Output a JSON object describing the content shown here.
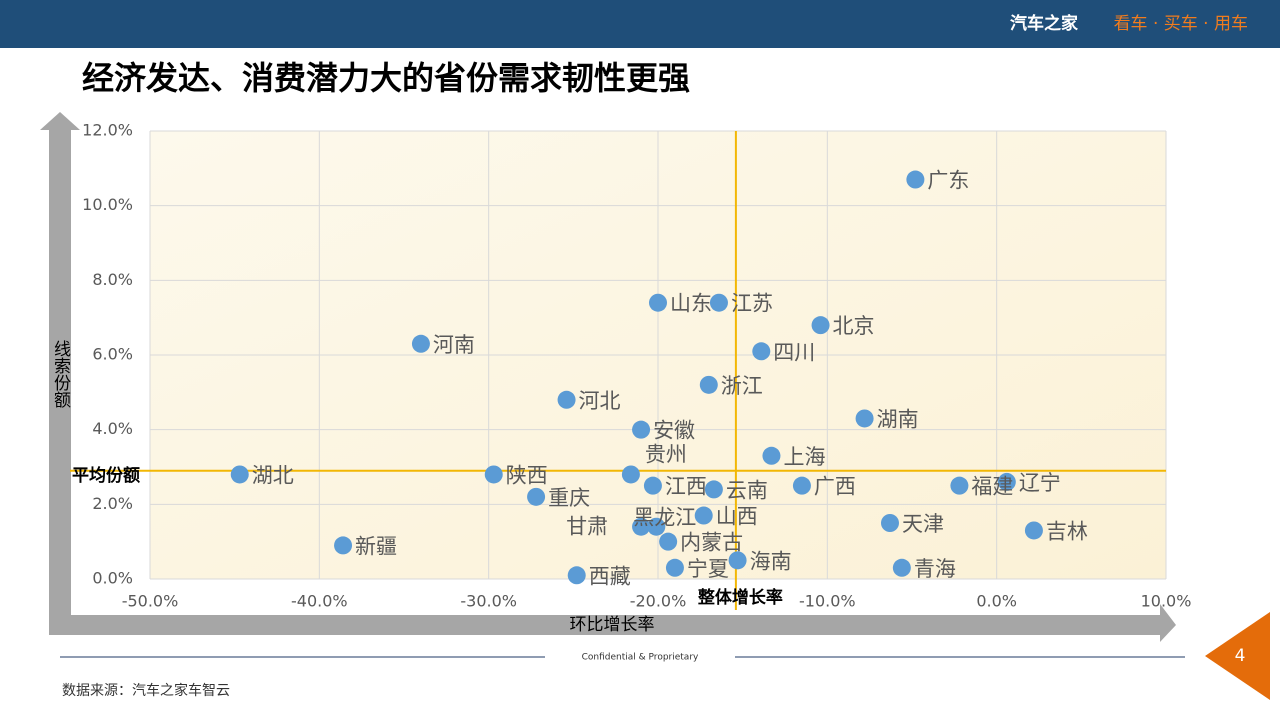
{
  "header": {
    "brand": "汽车之家",
    "slogan": "看车 · 买车 · 用车"
  },
  "slide_title": "经济发达、消费潜力大的省份需求韧性更强",
  "footer": {
    "confidential": "Confidential & Proprietary",
    "source": "数据来源：汽车之家车智云",
    "page": "4"
  },
  "chart_data": {
    "type": "scatter",
    "x_label": "环比增长率",
    "y_label": "线索份额",
    "color": "#5b9bd5",
    "grid": true,
    "xlim": [
      -50,
      10
    ],
    "ylim": [
      0,
      12
    ],
    "xticks": [
      {
        "value": -50,
        "label": "-50.0%"
      },
      {
        "value": -40,
        "label": "-40.0%"
      },
      {
        "value": -30,
        "label": "-30.0%"
      },
      {
        "value": -20,
        "label": "-20.0%"
      },
      {
        "value": -10,
        "label": "-10.0%"
      },
      {
        "value": 0,
        "label": "0.0%"
      },
      {
        "value": 10,
        "label": "10.0%"
      }
    ],
    "yticks": [
      {
        "value": 0,
        "label": "0.0%"
      },
      {
        "value": 2,
        "label": "2.0%"
      },
      {
        "value": 4,
        "label": "4.0%"
      },
      {
        "value": 6,
        "label": "6.0%"
      },
      {
        "value": 8,
        "label": "8.0%"
      },
      {
        "value": 10,
        "label": "10.0%"
      },
      {
        "value": 12,
        "label": "12.0%"
      }
    ],
    "vline": {
      "value": -15.4,
      "label": "整体增长率",
      "color": "#f2b705"
    },
    "hline": {
      "value": 2.9,
      "label": "平均份额",
      "color": "#f2b705"
    },
    "labels": [
      "广东",
      "山东",
      "江苏",
      "北京",
      "河南",
      "四川",
      "浙江",
      "河北",
      "湖南",
      "安徽",
      "上海",
      "湖北",
      "陕西",
      "贵州",
      "辽宁",
      "广西",
      "福建",
      "江西",
      "云南",
      "重庆",
      "山西",
      "天津",
      "吉林",
      "甘肃",
      "黑龙江",
      "内蒙古",
      "新疆",
      "海南",
      "青海",
      "宁夏",
      "西藏"
    ],
    "x": [
      -4.8,
      -20.0,
      -16.4,
      -10.4,
      -34.0,
      -13.9,
      -17.0,
      -25.4,
      -7.8,
      -21.0,
      -13.3,
      -44.7,
      -29.7,
      -21.6,
      0.6,
      -11.5,
      -2.2,
      -20.3,
      -16.7,
      -27.2,
      -17.3,
      -6.3,
      2.2,
      -21.0,
      -20.1,
      -19.4,
      -38.6,
      -15.3,
      -5.6,
      -19.0,
      -24.8
    ],
    "values": [
      10.7,
      7.4,
      7.4,
      6.8,
      6.3,
      6.1,
      5.2,
      4.8,
      4.3,
      4.0,
      3.3,
      2.8,
      2.8,
      2.8,
      2.6,
      2.5,
      2.5,
      2.5,
      2.4,
      2.2,
      1.7,
      1.5,
      1.3,
      1.4,
      1.4,
      1.0,
      0.9,
      0.5,
      0.3,
      0.3,
      0.1
    ]
  }
}
